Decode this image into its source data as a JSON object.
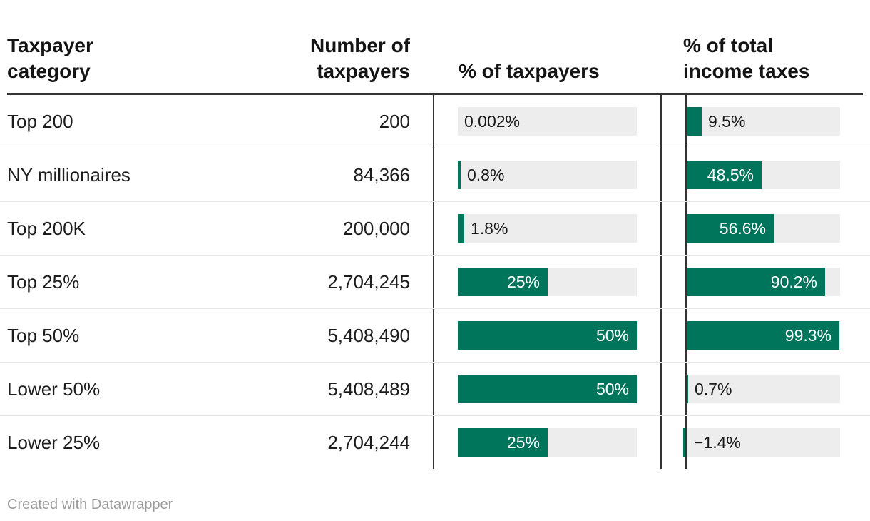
{
  "header": {
    "col1_line1": "Taxpayer",
    "col1_line2": "category",
    "col2_line1": "Number of",
    "col2_line2": "taxpayers",
    "col3": "% of taxpayers",
    "col4_line1": "% of total",
    "col4_line2": "income taxes"
  },
  "footer": {
    "credit": "Created with Datawrapper"
  },
  "colors": {
    "bar_green": "#00755c",
    "bar_track_gray": "#ededed",
    "header_rule": "#333333",
    "column_divider": "#333333",
    "row_separator": "#e8e8e8",
    "text": "#1d1d1d",
    "label_on_bar": "#ffffff",
    "footer_text": "#9a9a9a"
  },
  "chart_data": {
    "type": "table",
    "columns": [
      "Taxpayer category",
      "Number of taxpayers",
      "% of taxpayers",
      "% of total income taxes"
    ],
    "bar_columns": {
      "pct_taxpayers": {
        "axis_min": 0,
        "axis_max": 50,
        "bar_color": "#00755c"
      },
      "pct_income_taxes": {
        "axis_min": 0,
        "axis_max": 100,
        "bar_color": "#00755c"
      }
    },
    "rows": [
      {
        "category": "Top 200",
        "number_of_taxpayers": "200",
        "pct_taxpayers": 0.002,
        "pct_taxpayers_label": "0.002%",
        "pct_income_taxes": 9.5,
        "pct_income_taxes_label": "9.5%"
      },
      {
        "category": "NY millionaires",
        "number_of_taxpayers": "84,366",
        "pct_taxpayers": 0.8,
        "pct_taxpayers_label": "0.8%",
        "pct_income_taxes": 48.5,
        "pct_income_taxes_label": "48.5%"
      },
      {
        "category": "Top 200K",
        "number_of_taxpayers": "200,000",
        "pct_taxpayers": 1.8,
        "pct_taxpayers_label": "1.8%",
        "pct_income_taxes": 56.6,
        "pct_income_taxes_label": "56.6%"
      },
      {
        "category": "Top 25%",
        "number_of_taxpayers": "2,704,245",
        "pct_taxpayers": 25,
        "pct_taxpayers_label": "25%",
        "pct_income_taxes": 90.2,
        "pct_income_taxes_label": "90.2%"
      },
      {
        "category": "Top 50%",
        "number_of_taxpayers": "5,408,490",
        "pct_taxpayers": 50,
        "pct_taxpayers_label": "50%",
        "pct_income_taxes": 99.3,
        "pct_income_taxes_label": "99.3%"
      },
      {
        "category": "Lower 50%",
        "number_of_taxpayers": "5,408,489",
        "pct_taxpayers": 50,
        "pct_taxpayers_label": "50%",
        "pct_income_taxes": 0.7,
        "pct_income_taxes_label": "0.7%"
      },
      {
        "category": "Lower 25%",
        "number_of_taxpayers": "2,704,244",
        "pct_taxpayers": 25,
        "pct_taxpayers_label": "25%",
        "pct_income_taxes": -1.4,
        "pct_income_taxes_label": "−1.4%"
      }
    ]
  }
}
